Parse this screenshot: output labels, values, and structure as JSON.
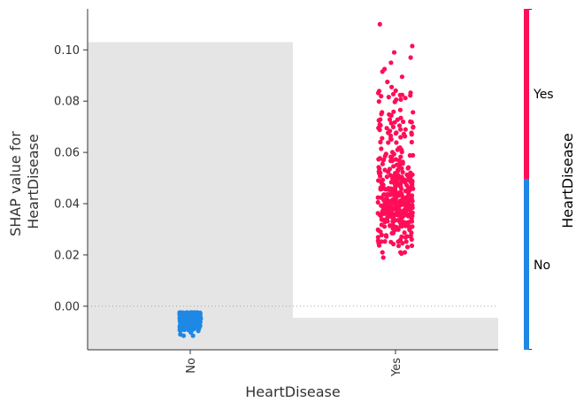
{
  "chart_data": {
    "type": "scatter",
    "subtype": "shap-dependence-categorical",
    "title": "",
    "xlabel": "HeartDisease",
    "ylabel_lines": [
      "SHAP value for",
      "HeartDisease"
    ],
    "categories": [
      "No",
      "Yes"
    ],
    "ylim": [
      -0.017,
      0.116
    ],
    "yticks": [
      0.0,
      0.02,
      0.04,
      0.06,
      0.08,
      0.1
    ],
    "ytick_labels": [
      "0.00",
      "0.02",
      "0.04",
      "0.06",
      "0.08",
      "0.10"
    ],
    "zero_line": true,
    "background_bars": [
      {
        "category": "No",
        "bottom": -0.017,
        "top": 0.103
      },
      {
        "category": "Yes",
        "bottom": -0.017,
        "top": -0.0045
      }
    ],
    "series": [
      {
        "name": "No",
        "color": "#1e88e5",
        "category": "No",
        "approx_count": 420,
        "y_range": [
          -0.0115,
          -0.0025
        ],
        "y_center": -0.0055
      },
      {
        "name": "Yes",
        "color": "#ff0d57",
        "category": "Yes",
        "approx_count": 430,
        "y_range": [
          0.019,
          0.11
        ],
        "y_center": 0.038,
        "outliers": [
          0.11,
          0.1015,
          0.099,
          0.097,
          0.095,
          0.0925,
          0.0915,
          0.0895,
          0.0875,
          0.0855
        ]
      }
    ],
    "colorbar": {
      "title": "HeartDisease",
      "labels": [
        "Yes",
        "No"
      ],
      "colors": [
        "#ff0d57",
        "#1e88e5"
      ]
    }
  }
}
